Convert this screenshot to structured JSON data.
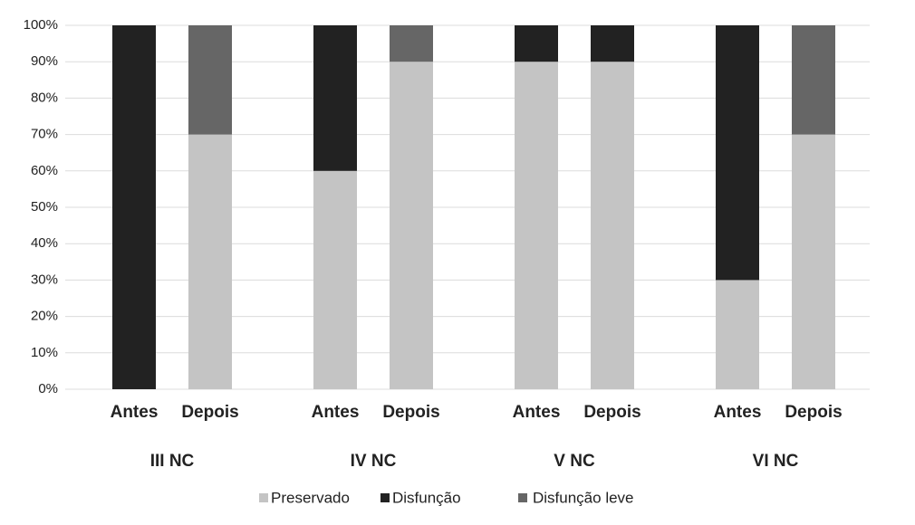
{
  "chart_data": {
    "type": "stacked_bar",
    "categories": [
      "Antes",
      "Depois",
      "Antes",
      "Depois",
      "Antes",
      "Depois",
      "Antes",
      "Depois"
    ],
    "groups": [
      "III NC",
      "IV NC",
      "V NC",
      "VI NC"
    ],
    "series": [
      {
        "name": "Preservado",
        "color": "#c4c4c4",
        "values": [
          0,
          70,
          60,
          90,
          90,
          90,
          30,
          70
        ]
      },
      {
        "name": "Disfunção",
        "color": "#222222",
        "values": [
          100,
          0,
          40,
          0,
          10,
          10,
          70,
          0
        ]
      },
      {
        "name": "Disfunção leve",
        "color": "#666666",
        "values": [
          0,
          30,
          0,
          10,
          0,
          0,
          0,
          30
        ]
      }
    ],
    "ylim": [
      0,
      100
    ],
    "yticks": [
      {
        "value": 0,
        "label": "0%"
      },
      {
        "value": 10,
        "label": "10%"
      },
      {
        "value": 20,
        "label": "20%"
      },
      {
        "value": 30,
        "label": "30%"
      },
      {
        "value": 40,
        "label": "40%"
      },
      {
        "value": 50,
        "label": "50%"
      },
      {
        "value": 60,
        "label": "60%"
      },
      {
        "value": 70,
        "label": "70%"
      },
      {
        "value": 80,
        "label": "80%"
      },
      {
        "value": 90,
        "label": "90%"
      },
      {
        "value": 100,
        "label": "100%"
      }
    ],
    "grid": true
  }
}
